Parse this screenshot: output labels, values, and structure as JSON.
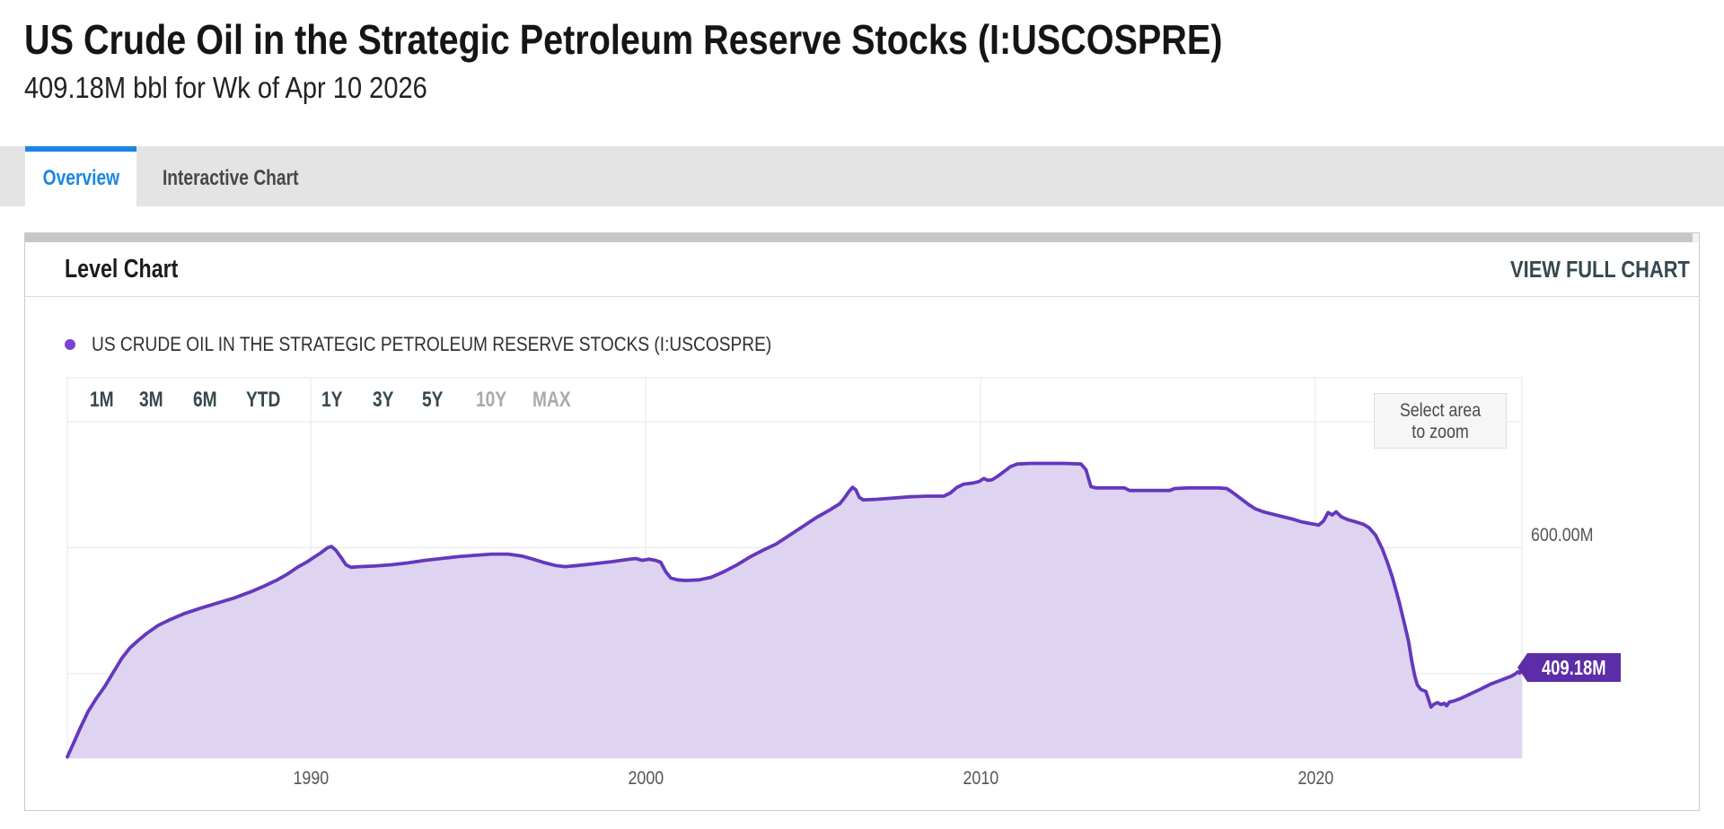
{
  "page": {
    "title": "US Crude Oil in the Strategic Petroleum Reserve Stocks (I:USCOSPRE)",
    "subtitle": "409.18M bbl for Wk of Apr 10 2026"
  },
  "tabs": [
    {
      "label": "Overview",
      "active": true
    },
    {
      "label": "Interactive Chart",
      "active": false
    }
  ],
  "card": {
    "title": "Level Chart",
    "action": "VIEW FULL CHART"
  },
  "chart": {
    "legend": "US CRUDE OIL IN THE STRATEGIC PETROLEUM RESERVE STOCKS (I:USCOSPRE)",
    "zoom_hint_line1": "Select area",
    "zoom_hint_line2": "to zoom",
    "last_value_label": "409.18M",
    "colors": {
      "line": "#6438bd",
      "marker": "#7a41d6",
      "fill": "#ded3f1",
      "badge": "#5c2da6",
      "accent_blue": "#1b87e5"
    }
  },
  "chart_data": {
    "type": "area",
    "title": "Level Chart",
    "xlabel": "",
    "ylabel": "",
    "xlim": [
      1982.73,
      2026.17
    ],
    "ylim": [
      266,
      870
    ],
    "x_ticks": [
      {
        "value": 1990,
        "label": "1990"
      },
      {
        "value": 2000,
        "label": "2000"
      },
      {
        "value": 2010,
        "label": "2010"
      },
      {
        "value": 2020,
        "label": "2020"
      }
    ],
    "y_gridlines": [
      400,
      600,
      800
    ],
    "y_axis_labels": [
      {
        "value": 600,
        "label": "600.00M"
      }
    ],
    "range_buttons": [
      {
        "label": "1M",
        "enabled": true
      },
      {
        "label": "3M",
        "enabled": true
      },
      {
        "label": "6M",
        "enabled": true
      },
      {
        "label": "YTD",
        "enabled": true
      },
      {
        "label": "1Y",
        "enabled": true
      },
      {
        "label": "3Y",
        "enabled": true
      },
      {
        "label": "5Y",
        "enabled": true
      },
      {
        "label": "10Y",
        "enabled": false
      },
      {
        "label": "MAX",
        "enabled": false
      }
    ],
    "last_value": 409.18,
    "series": [
      {
        "name": "US CRUDE OIL IN THE STRATEGIC PETROLEUM RESERVE STOCKS (I:USCOSPRE)",
        "points": [
          [
            1982.73,
            268
          ],
          [
            1982.9,
            288
          ],
          [
            1983.1,
            312
          ],
          [
            1983.35,
            340
          ],
          [
            1983.6,
            361
          ],
          [
            1983.85,
            380
          ],
          [
            1984.1,
            402
          ],
          [
            1984.35,
            424
          ],
          [
            1984.6,
            441
          ],
          [
            1984.85,
            453
          ],
          [
            1985.1,
            464
          ],
          [
            1985.45,
            477
          ],
          [
            1985.8,
            486
          ],
          [
            1986.2,
            495
          ],
          [
            1986.7,
            504
          ],
          [
            1987.2,
            512
          ],
          [
            1987.7,
            520
          ],
          [
            1988.2,
            530
          ],
          [
            1988.6,
            539
          ],
          [
            1989.0,
            549
          ],
          [
            1989.3,
            558
          ],
          [
            1989.6,
            569
          ],
          [
            1989.9,
            578
          ],
          [
            1990.1,
            585
          ],
          [
            1990.3,
            592
          ],
          [
            1990.5,
            600
          ],
          [
            1990.62,
            602
          ],
          [
            1990.75,
            596
          ],
          [
            1990.9,
            585
          ],
          [
            1991.05,
            573
          ],
          [
            1991.2,
            569
          ],
          [
            1991.45,
            570
          ],
          [
            1991.9,
            571
          ],
          [
            1992.4,
            573
          ],
          [
            1992.9,
            576
          ],
          [
            1993.4,
            580
          ],
          [
            1993.9,
            583
          ],
          [
            1994.4,
            586
          ],
          [
            1994.9,
            588
          ],
          [
            1995.4,
            590
          ],
          [
            1995.9,
            590
          ],
          [
            1996.3,
            587
          ],
          [
            1996.7,
            581
          ],
          [
            1997.0,
            576
          ],
          [
            1997.3,
            572
          ],
          [
            1997.6,
            570
          ],
          [
            1998.0,
            572
          ],
          [
            1998.5,
            575
          ],
          [
            1999.0,
            578
          ],
          [
            1999.4,
            581
          ],
          [
            1999.7,
            583
          ],
          [
            1999.9,
            580
          ],
          [
            2000.1,
            582
          ],
          [
            2000.3,
            580
          ],
          [
            2000.45,
            577
          ],
          [
            2000.6,
            562
          ],
          [
            2000.75,
            552
          ],
          [
            2000.95,
            549
          ],
          [
            2001.2,
            548
          ],
          [
            2001.6,
            549
          ],
          [
            2001.95,
            553
          ],
          [
            2002.3,
            561
          ],
          [
            2002.7,
            572
          ],
          [
            2003.1,
            585
          ],
          [
            2003.5,
            596
          ],
          [
            2003.9,
            606
          ],
          [
            2004.3,
            620
          ],
          [
            2004.7,
            634
          ],
          [
            2005.1,
            648
          ],
          [
            2005.5,
            660
          ],
          [
            2005.8,
            670
          ],
          [
            2005.95,
            680
          ],
          [
            2006.08,
            690
          ],
          [
            2006.18,
            696
          ],
          [
            2006.28,
            692
          ],
          [
            2006.38,
            680
          ],
          [
            2006.5,
            676
          ],
          [
            2006.9,
            677
          ],
          [
            2007.4,
            679
          ],
          [
            2007.9,
            681
          ],
          [
            2008.4,
            682
          ],
          [
            2008.9,
            682
          ],
          [
            2009.1,
            687
          ],
          [
            2009.3,
            696
          ],
          [
            2009.5,
            701
          ],
          [
            2009.8,
            703
          ],
          [
            2009.95,
            705
          ],
          [
            2010.1,
            710
          ],
          [
            2010.22,
            707
          ],
          [
            2010.35,
            708
          ],
          [
            2010.5,
            713
          ],
          [
            2010.7,
            721
          ],
          [
            2010.9,
            729
          ],
          [
            2011.1,
            733
          ],
          [
            2011.5,
            734
          ],
          [
            2012.0,
            734
          ],
          [
            2012.5,
            734
          ],
          [
            2013.0,
            733
          ],
          [
            2013.15,
            724
          ],
          [
            2013.3,
            697
          ],
          [
            2013.45,
            695
          ],
          [
            2013.9,
            695
          ],
          [
            2014.3,
            695
          ],
          [
            2014.45,
            691
          ],
          [
            2014.9,
            691
          ],
          [
            2015.4,
            691
          ],
          [
            2015.65,
            691
          ],
          [
            2015.8,
            694
          ],
          [
            2016.2,
            695
          ],
          [
            2016.7,
            695
          ],
          [
            2017.1,
            695
          ],
          [
            2017.35,
            694
          ],
          [
            2017.5,
            689
          ],
          [
            2017.65,
            683
          ],
          [
            2017.8,
            677
          ],
          [
            2018.0,
            669
          ],
          [
            2018.2,
            662
          ],
          [
            2018.45,
            657
          ],
          [
            2018.75,
            653
          ],
          [
            2019.05,
            649
          ],
          [
            2019.35,
            645
          ],
          [
            2019.6,
            641
          ],
          [
            2019.9,
            638
          ],
          [
            2020.1,
            636
          ],
          [
            2020.25,
            643
          ],
          [
            2020.38,
            656
          ],
          [
            2020.5,
            652
          ],
          [
            2020.62,
            657
          ],
          [
            2020.78,
            649
          ],
          [
            2020.95,
            645
          ],
          [
            2021.15,
            642
          ],
          [
            2021.45,
            637
          ],
          [
            2021.6,
            632
          ],
          [
            2021.8,
            620
          ],
          [
            2022.0,
            598
          ],
          [
            2022.15,
            577
          ],
          [
            2022.3,
            553
          ],
          [
            2022.5,
            515
          ],
          [
            2022.65,
            482
          ],
          [
            2022.78,
            452
          ],
          [
            2022.88,
            420
          ],
          [
            2022.97,
            396
          ],
          [
            2023.05,
            382
          ],
          [
            2023.15,
            375
          ],
          [
            2023.3,
            372
          ],
          [
            2023.38,
            359
          ],
          [
            2023.45,
            347
          ],
          [
            2023.55,
            352
          ],
          [
            2023.65,
            354
          ],
          [
            2023.75,
            351
          ],
          [
            2023.85,
            353
          ],
          [
            2023.92,
            349
          ],
          [
            2024.0,
            355
          ],
          [
            2024.15,
            357
          ],
          [
            2024.35,
            361
          ],
          [
            2024.55,
            366
          ],
          [
            2024.75,
            371
          ],
          [
            2024.95,
            376
          ],
          [
            2025.1,
            380
          ],
          [
            2025.25,
            384
          ],
          [
            2025.4,
            387
          ],
          [
            2025.55,
            390
          ],
          [
            2025.7,
            393
          ],
          [
            2025.85,
            396
          ],
          [
            2025.95,
            399
          ],
          [
            2026.05,
            403
          ],
          [
            2026.1,
            401
          ],
          [
            2026.16,
            409.18
          ]
        ]
      }
    ]
  }
}
